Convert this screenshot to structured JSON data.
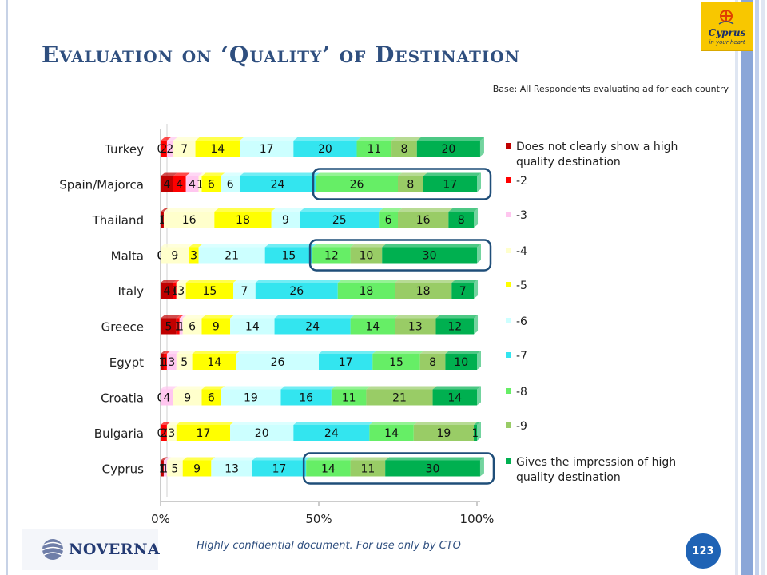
{
  "slide": {
    "title": "Evaluation on ‘Quality’ of Destination",
    "base_note": "Base: All Respondents evaluating ad for each country",
    "footer": "Highly confidential document. For use only by CTO",
    "page_number": "123",
    "vendor_logo": "NOVERNA",
    "brand_logo_text": "Cyprus in your heart"
  },
  "colors": {
    "title": "#2f4f7f",
    "badge": "#1f63b5",
    "highlight_box": "#1f4e79",
    "series": [
      "#c00000",
      "#ff0000",
      "#ffc6ef",
      "#ffffcc",
      "#ffff00",
      "#ccffff",
      "#33e5ef",
      "#66ee66",
      "#99cc66",
      "#00b050"
    ]
  },
  "chart_data": {
    "type": "bar",
    "orientation": "horizontal",
    "stacked": "100%",
    "title": "",
    "xlabel": "",
    "ylabel": "",
    "xlim": [
      0,
      100
    ],
    "x_ticks": [
      "0%",
      "50%",
      "100%"
    ],
    "legend_position": "right",
    "categories": [
      "Turkey",
      "Spain/Majorca",
      "Thailand",
      "Malta",
      "Italy",
      "Greece",
      "Egypt",
      "Croatia",
      "Bulgaria",
      "Cyprus"
    ],
    "series": [
      {
        "name": "Does not clearly show a high quality destination",
        "values": [
          0,
          4,
          1,
          0,
          4,
          5,
          1,
          0,
          0,
          1
        ]
      },
      {
        "name": "-2",
        "values": [
          2,
          4,
          0,
          0,
          1,
          1,
          1,
          0,
          2,
          0
        ]
      },
      {
        "name": "-3",
        "values": [
          2,
          4,
          0,
          0,
          0,
          1,
          3,
          4,
          0,
          1
        ]
      },
      {
        "name": "-4",
        "values": [
          7,
          1,
          16,
          9,
          3,
          6,
          5,
          9,
          3,
          5
        ]
      },
      {
        "name": "-5",
        "values": [
          14,
          6,
          18,
          3,
          15,
          9,
          14,
          6,
          17,
          9
        ]
      },
      {
        "name": "-6",
        "values": [
          17,
          6,
          9,
          21,
          7,
          14,
          26,
          19,
          20,
          13
        ]
      },
      {
        "name": "-7",
        "values": [
          20,
          24,
          25,
          15,
          26,
          24,
          17,
          16,
          24,
          17
        ]
      },
      {
        "name": "-8",
        "values": [
          11,
          26,
          6,
          12,
          18,
          14,
          15,
          11,
          14,
          14
        ]
      },
      {
        "name": "-9",
        "values": [
          8,
          8,
          16,
          10,
          18,
          13,
          8,
          21,
          19,
          11
        ]
      },
      {
        "name": "Gives the impression of high quality destination",
        "values": [
          20,
          17,
          8,
          30,
          7,
          12,
          10,
          14,
          1,
          30
        ]
      }
    ],
    "legend_labels": [
      [
        "Does not clearly show a high",
        "quality destination"
      ],
      [
        "-2"
      ],
      [
        "-3"
      ],
      [
        "-4"
      ],
      [
        "-5"
      ],
      [
        "-6"
      ],
      [
        "-7"
      ],
      [
        "-8"
      ],
      [
        "-9"
      ],
      [
        "Gives the impression of high",
        "quality destination"
      ]
    ],
    "highlights": [
      {
        "rows": [
          "Spain/Majorca"
        ],
        "from_series": 7,
        "to_series": 9
      },
      {
        "rows": [
          "Malta"
        ],
        "from_series": 7,
        "to_series": 9
      },
      {
        "rows": [
          "Cyprus"
        ],
        "from_series": 7,
        "to_series": 9
      }
    ]
  }
}
